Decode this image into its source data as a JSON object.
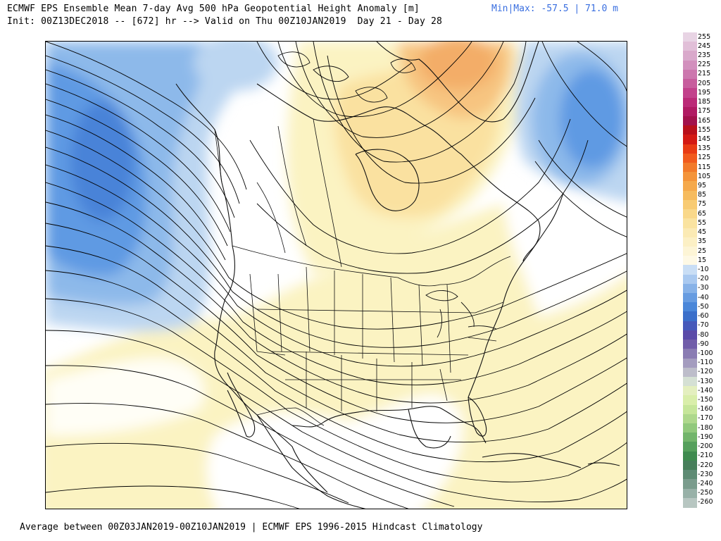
{
  "header": {
    "title": "ECMWF EPS Ensemble Mean 7-day Avg 500 hPa Geopotential Height Anomaly [m]",
    "minmax": "Min|Max: -57.5 | 71.0 m",
    "init": "Init: 00Z13DEC2018 -- [672] hr --> Valid on Thu 00Z10JAN2019  Day 21 - Day 28"
  },
  "footer": "Average between 00Z03JAN2019-00Z10JAN2019 | ECMWF EPS 1996-2015 Hindcast Climatology",
  "colors": {
    "positive_light": "#fbf3c2",
    "positive_mid": "#fae1a0",
    "positive_strong": "#f7c480",
    "positive_peak": "#f3ad68",
    "negative_light": "#bcd6f1",
    "negative_mid": "#8db9ea",
    "negative_strong": "#5f9ae3",
    "negative_peak": "#4a83d8",
    "neutral": "#ffffff"
  },
  "colorbar": {
    "ticks": [
      "255",
      "245",
      "235",
      "225",
      "215",
      "205",
      "195",
      "185",
      "175",
      "165",
      "155",
      "145",
      "135",
      "125",
      "115",
      "105",
      "95",
      "85",
      "75",
      "65",
      "55",
      "45",
      "35",
      "25",
      "15",
      "-10",
      "-20",
      "-30",
      "-40",
      "-50",
      "-60",
      "-70",
      "-80",
      "-90",
      "-100",
      "-110",
      "-120",
      "-130",
      "-140",
      "-150",
      "-160",
      "-170",
      "-180",
      "-190",
      "-200",
      "-210",
      "-220",
      "-230",
      "-240",
      "-250",
      "-260"
    ],
    "colors": [
      "#e8d4e4",
      "#e1bfd8",
      "#d9a9cb",
      "#d290bd",
      "#cc77ae",
      "#c75d9d",
      "#c2418b",
      "#bb2a77",
      "#b01a62",
      "#a2114b",
      "#b8101b",
      "#d31a14",
      "#e83b14",
      "#f15a1d",
      "#f27a2a",
      "#f4943a",
      "#f5a94c",
      "#f6bb5e",
      "#f8cb73",
      "#f9d88a",
      "#fae3a0",
      "#fbeab4",
      "#fcf0c5",
      "#fdf5d6",
      "#fef9e5",
      "#c9def5",
      "#a9c9f0",
      "#87b2e8",
      "#679ce1",
      "#4a87d9",
      "#3b6fca",
      "#4659ba",
      "#5a4aa8",
      "#715da9",
      "#8a7cb3",
      "#a49cbf",
      "#bdbdca",
      "#d5e0d4",
      "#e4efbf",
      "#d9eeaa",
      "#c6e69a",
      "#aed88c",
      "#91c97c",
      "#72b56b",
      "#55a05c",
      "#3f8b4f",
      "#477f5b",
      "#5e8b74",
      "#7a9c8d",
      "#98b1a8",
      "#b7c6c1"
    ]
  }
}
